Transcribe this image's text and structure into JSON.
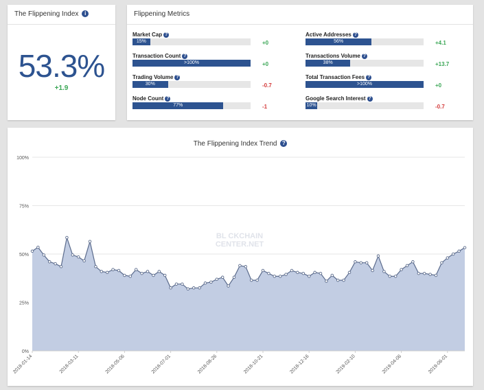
{
  "index_card": {
    "title": "The Flippening Index",
    "value": "53.3%",
    "delta": "+1.9"
  },
  "metrics_card": {
    "title": "Flippening Metrics",
    "metrics": [
      {
        "label": "Market Cap",
        "fill_percent": 15,
        "bar_text": "15%",
        "delta": "+0",
        "delta_color": "#3aa655"
      },
      {
        "label": "Transaction Count",
        "fill_percent": 100,
        "bar_text": ">100%",
        "delta": "+0",
        "delta_color": "#3aa655"
      },
      {
        "label": "Trading Volume",
        "fill_percent": 30,
        "bar_text": "30%",
        "delta": "-0.7",
        "delta_color": "#d43b3b"
      },
      {
        "label": "Node Count",
        "fill_percent": 77,
        "bar_text": "77%",
        "delta": "-1",
        "delta_color": "#d43b3b"
      },
      {
        "label": "Active Addresses",
        "fill_percent": 56,
        "bar_text": "56%",
        "delta": "+4.1",
        "delta_color": "#3aa655"
      },
      {
        "label": "Transactions Volume",
        "fill_percent": 38,
        "bar_text": "38%",
        "delta": "+13.7",
        "delta_color": "#3aa655"
      },
      {
        "label": "Total Transaction Fees",
        "fill_percent": 100,
        "bar_text": ">100%",
        "delta": "+0",
        "delta_color": "#3aa655"
      },
      {
        "label": "Google Search Interest",
        "fill_percent": 10,
        "bar_text": "10%",
        "delta": "-0.7",
        "delta_color": "#d43b3b"
      }
    ]
  },
  "trend_card": {
    "watermark_line1": "BL  CKCHAIN",
    "watermark_line2": "CENTER.NET"
  },
  "chart_data": {
    "type": "area",
    "title": "The Flippening Index Trend",
    "ylim": [
      0,
      100
    ],
    "yticks": [
      "0%",
      "25%",
      "50%",
      "75%",
      "100%"
    ],
    "ytick_values": [
      0,
      25,
      50,
      75,
      100
    ],
    "xtick_labels": [
      "2018-01-14",
      "2018-03-11",
      "2018-05-06",
      "2018-07-01",
      "2018-08-26",
      "2018-10-21",
      "2018-12-16",
      "2019-02-10",
      "2019-04-06",
      "2019-06-01"
    ],
    "xtick_indices": [
      0,
      8,
      16,
      24,
      32,
      40,
      48,
      56,
      64,
      72
    ],
    "values": [
      51.5,
      53.5,
      49.5,
      46,
      45,
      43.5,
      58.5,
      49.5,
      48.5,
      46.5,
      56.5,
      43.5,
      41,
      40.5,
      42,
      41.5,
      39,
      38.5,
      42,
      40,
      41,
      39,
      41,
      39,
      32.5,
      34.5,
      34.5,
      32,
      32.5,
      32.5,
      35,
      35.5,
      37,
      38,
      33.5,
      38,
      44,
      43.5,
      36.5,
      36.5,
      41.5,
      40,
      38.5,
      38.5,
      39.5,
      41.5,
      40.5,
      40,
      38.5,
      40.5,
      40,
      36,
      39,
      36.5,
      36.5,
      40.5,
      46,
      45.5,
      45.5,
      41.5,
      49,
      41,
      38.5,
      38.5,
      42,
      44,
      46,
      40,
      40,
      39.5,
      39,
      45.5,
      48,
      50,
      51.5,
      53.3
    ],
    "fill_color": "#c2cde3",
    "line_color": "#5b6b8c",
    "grid": true
  }
}
